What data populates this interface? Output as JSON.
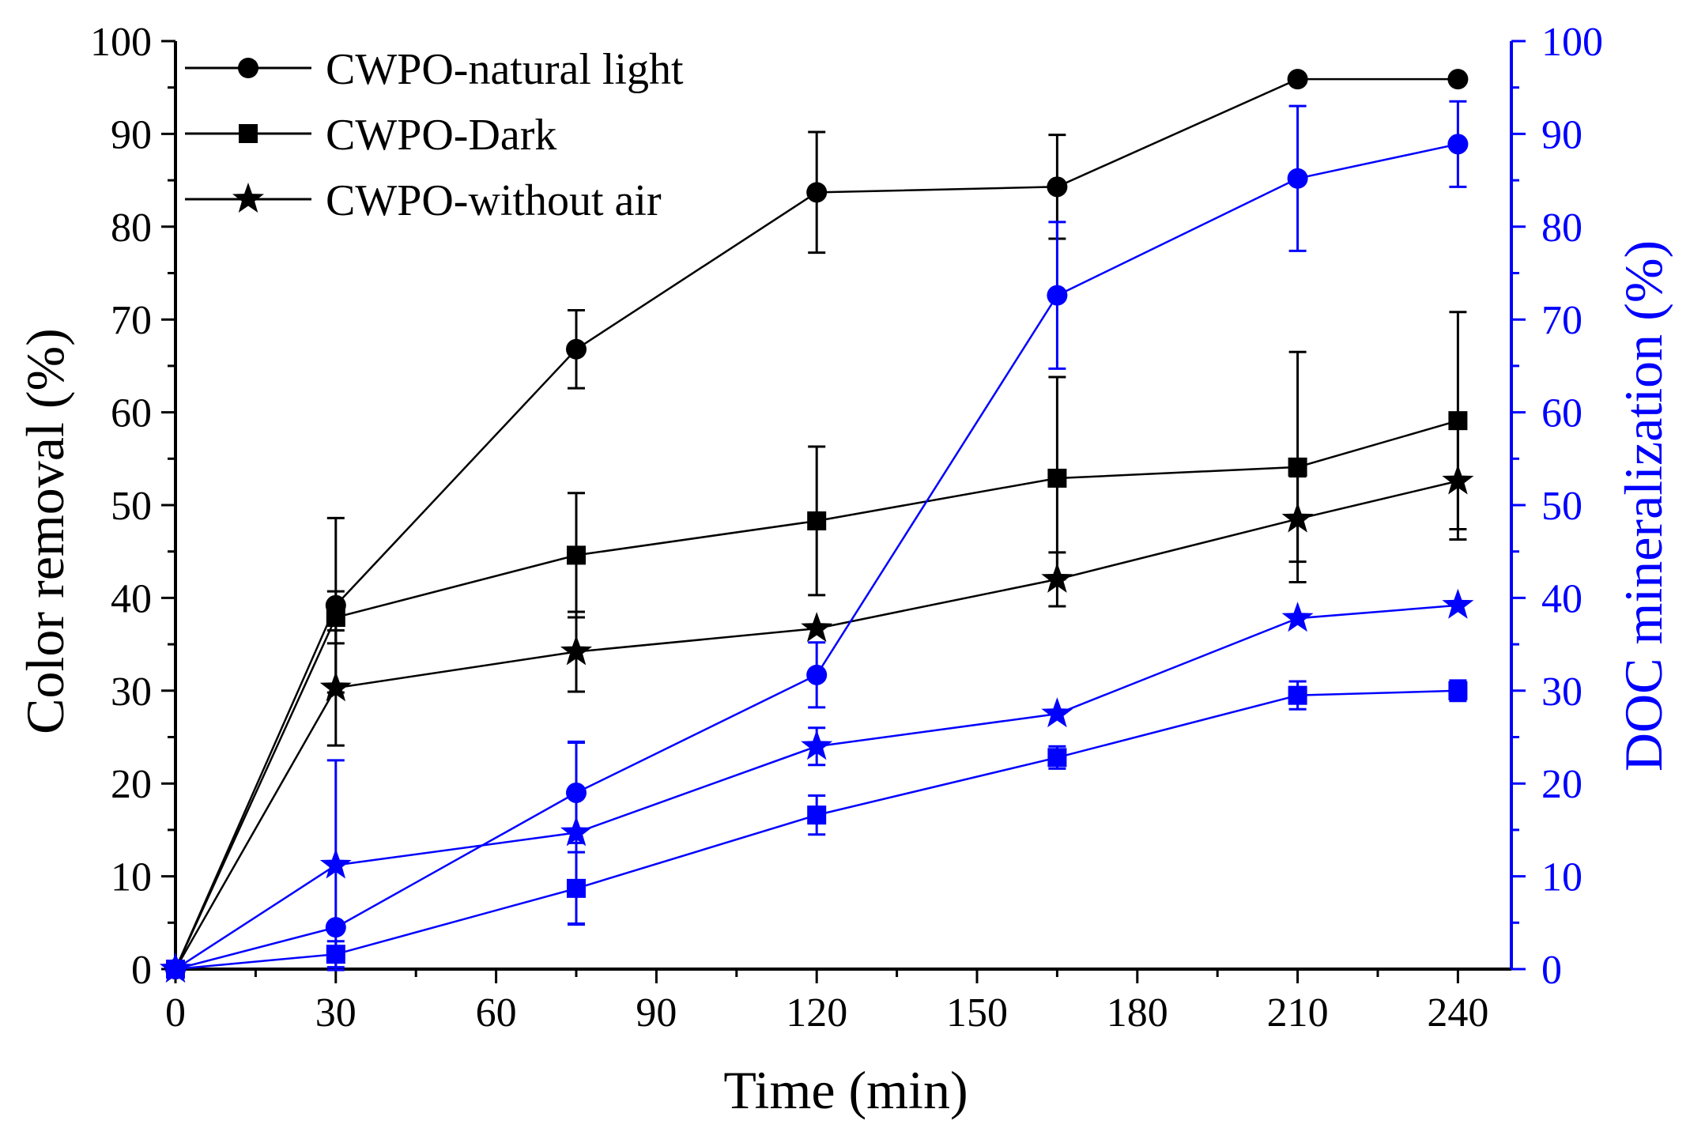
{
  "chart_data": {
    "type": "line",
    "xlabel": "Time (min)",
    "ylabel_left": "Color removal (%)",
    "ylabel_right": "DOC mineralization (%)",
    "xlim": [
      0,
      250
    ],
    "ylim_left": [
      0,
      100
    ],
    "ylim_right": [
      0,
      100
    ],
    "x_ticks": [
      0,
      30,
      60,
      90,
      120,
      150,
      180,
      210,
      240
    ],
    "y_ticks": [
      0,
      10,
      20,
      30,
      40,
      50,
      60,
      70,
      80,
      90,
      100
    ],
    "x_tick_labels": [
      "0",
      "30",
      "60",
      "90",
      "120",
      "150",
      "180",
      "210",
      "240"
    ],
    "y_tick_labels": [
      "0",
      "10",
      "20",
      "30",
      "40",
      "50",
      "60",
      "70",
      "80",
      "90",
      "100"
    ],
    "left_axis_color": "#000000",
    "right_axis_color": "#0000ff",
    "legend_position": "top-left",
    "legend": [
      {
        "label": "CWPO-natural light",
        "marker": "circle"
      },
      {
        "label": "CWPO-Dark",
        "marker": "square"
      },
      {
        "label": "CWPO-without air",
        "marker": "star"
      }
    ],
    "series": [
      {
        "name": "CWPO-natural light (color removal)",
        "axis": "left",
        "color": "#000000",
        "marker": "circle",
        "x": [
          0,
          30,
          75,
          120,
          165,
          210,
          240
        ],
        "y": [
          0,
          39.2,
          66.8,
          83.7,
          84.3,
          95.9,
          95.9
        ],
        "err": [
          0,
          9.4,
          4.2,
          6.5,
          5.6,
          0,
          0
        ]
      },
      {
        "name": "CWPO-Dark (color removal)",
        "axis": "left",
        "color": "#000000",
        "marker": "square",
        "x": [
          0,
          30,
          75,
          120,
          165,
          210,
          240
        ],
        "y": [
          0,
          37.9,
          44.6,
          48.3,
          52.9,
          54.1,
          59.1
        ],
        "err": [
          0,
          2.8,
          6.7,
          8.0,
          10.9,
          12.4,
          11.7
        ]
      },
      {
        "name": "CWPO-without air (color removal)",
        "axis": "left",
        "color": "#000000",
        "marker": "star",
        "x": [
          0,
          30,
          75,
          120,
          165,
          210,
          240
        ],
        "y": [
          0,
          30.3,
          34.2,
          36.7,
          42.0,
          48.5,
          52.6
        ],
        "err": [
          0,
          6.2,
          4.3,
          0,
          2.9,
          4.6,
          6.3
        ]
      },
      {
        "name": "CWPO-natural light (DOC mineralization)",
        "axis": "right",
        "color": "#0000ff",
        "marker": "circle",
        "x": [
          0,
          30,
          75,
          120,
          165,
          210,
          240
        ],
        "y": [
          0,
          4.5,
          19.0,
          31.7,
          72.6,
          85.2,
          88.9
        ],
        "err": [
          0,
          0,
          5.4,
          3.5,
          7.9,
          7.8,
          4.6
        ]
      },
      {
        "name": "CWPO-Dark (DOC mineralization)",
        "axis": "right",
        "color": "#0000ff",
        "marker": "square",
        "x": [
          0,
          30,
          75,
          120,
          165,
          210,
          240
        ],
        "y": [
          0,
          1.6,
          8.7,
          16.6,
          22.8,
          29.5,
          30.0
        ],
        "err": [
          0,
          1.4,
          3.9,
          2.1,
          1.2,
          1.5,
          1.1
        ]
      },
      {
        "name": "CWPO-without air (DOC mineralization)",
        "axis": "right",
        "color": "#0000ff",
        "marker": "star",
        "x": [
          0,
          30,
          75,
          120,
          165,
          210,
          240
        ],
        "y": [
          0,
          11.2,
          14.7,
          24.0,
          27.5,
          37.8,
          39.2
        ],
        "err": [
          0,
          11.3,
          9.8,
          2.0,
          0,
          0,
          0
        ]
      }
    ]
  }
}
